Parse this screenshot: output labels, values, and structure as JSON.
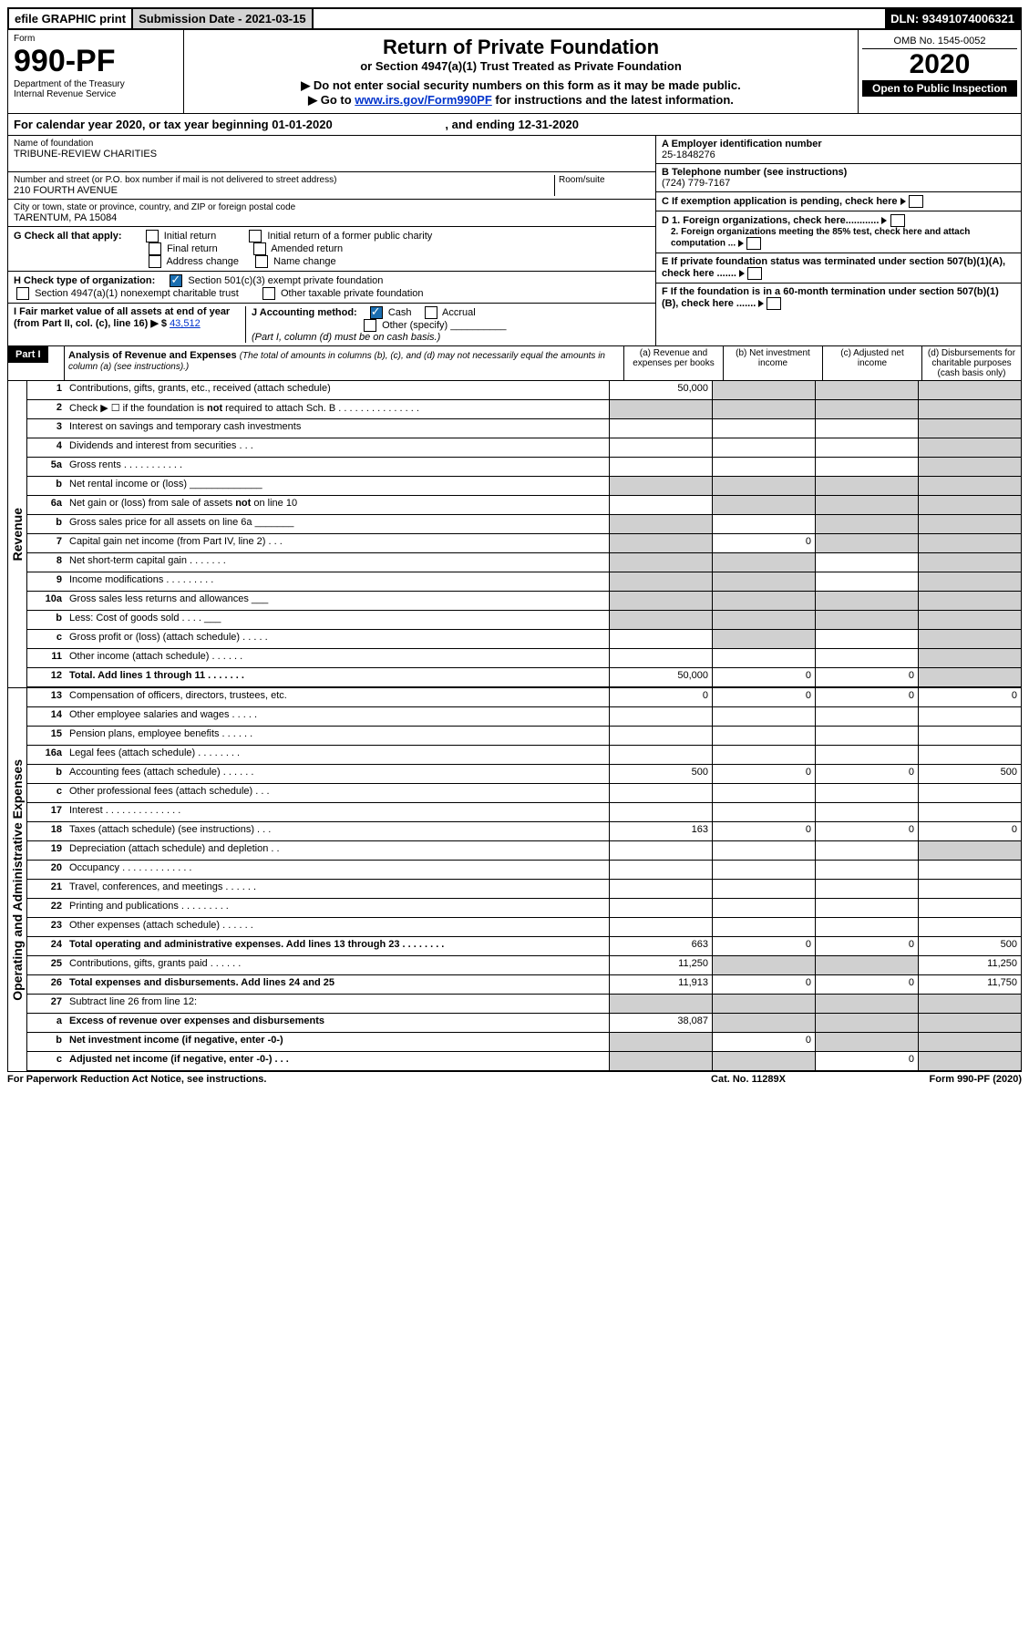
{
  "topbar": {
    "efile": "efile GRAPHIC print",
    "subdate": "Submission Date - 2021-03-15",
    "dln": "DLN: 93491074006321"
  },
  "hdr": {
    "form": "Form",
    "formno": "990-PF",
    "dept": "Department of the Treasury",
    "irs": "Internal Revenue Service",
    "title": "Return of Private Foundation",
    "subtitle": "or Section 4947(a)(1) Trust Treated as Private Foundation",
    "note1": "▶ Do not enter social security numbers on this form as it may be made public.",
    "note2": "▶ Go to ",
    "link": "www.irs.gov/Form990PF",
    "note3": " for instructions and the latest information.",
    "omb": "OMB No. 1545-0052",
    "year": "2020",
    "open": "Open to Public Inspection"
  },
  "calyear": "For calendar year 2020, or tax year beginning 01-01-2020",
  "calyear2": ", and ending 12-31-2020",
  "left": {
    "name_lbl": "Name of foundation",
    "name": "TRIBUNE-REVIEW CHARITIES",
    "addr_lbl": "Number and street (or P.O. box number if mail is not delivered to street address)",
    "room_lbl": "Room/suite",
    "addr": "210 FOURTH AVENUE",
    "city_lbl": "City or town, state or province, country, and ZIP or foreign postal code",
    "city": "TARENTUM, PA  15084",
    "g": "G Check all that apply:",
    "g1": "Initial return",
    "g2": "Final return",
    "g3": "Address change",
    "g4": "Initial return of a former public charity",
    "g5": "Amended return",
    "g6": "Name change",
    "h": "H Check type of organization:",
    "h1": "Section 501(c)(3) exempt private foundation",
    "h2": "Section 4947(a)(1) nonexempt charitable trust",
    "h3": "Other taxable private foundation",
    "i": "I Fair market value of all assets at end of year (from Part II, col. (c), line 16) ▶ $",
    "ival": "43,512",
    "j": "J Accounting method:",
    "j1": "Cash",
    "j2": "Accrual",
    "j3": "Other (specify)",
    "jnote": "(Part I, column (d) must be on cash basis.)"
  },
  "right": {
    "a": "A Employer identification number",
    "aval": "25-1848276",
    "b": "B Telephone number (see instructions)",
    "bval": "(724) 779-7167",
    "c": "C If exemption application is pending, check here",
    "d1": "D 1. Foreign organizations, check here............",
    "d2": "2. Foreign organizations meeting the 85% test, check here and attach computation ...",
    "e": "E If private foundation status was terminated under section 507(b)(1)(A), check here .......",
    "f": "F If the foundation is in a 60-month termination under section 507(b)(1)(B), check here ......."
  },
  "part1": {
    "label": "Part I",
    "title": "Analysis of Revenue and Expenses",
    "note": "(The total of amounts in columns (b), (c), and (d) may not necessarily equal the amounts in column (a) (see instructions).)",
    "cols": {
      "a": "(a)  Revenue and expenses per books",
      "b": "(b)  Net investment income",
      "c": "(c)  Adjusted net income",
      "d": "(d)  Disbursements for charitable purposes (cash basis only)"
    }
  },
  "side": {
    "rev": "Revenue",
    "exp": "Operating and Administrative Expenses"
  },
  "rows": [
    {
      "n": "1",
      "d": "Contributions, gifts, grants, etc., received (attach schedule)",
      "a": "50,000",
      "bg": [
        "",
        "g",
        "g",
        "g"
      ]
    },
    {
      "n": "2",
      "d": "Check ▶ ☐ if the foundation is not required to attach Sch. B  .  .  .  .  .  .  .  .  .  .  .  .  .  .  .",
      "bg": [
        "g",
        "g",
        "g",
        "g"
      ]
    },
    {
      "n": "3",
      "d": "Interest on savings and temporary cash investments",
      "bg": [
        "",
        "",
        "",
        "g"
      ]
    },
    {
      "n": "4",
      "d": "Dividends and interest from securities   .   .   .",
      "bg": [
        "",
        "",
        "",
        "g"
      ]
    },
    {
      "n": "5a",
      "d": "Gross rents   .   .   .   .   .   .   .   .   .   .   .",
      "bg": [
        "",
        "",
        "",
        "g"
      ]
    },
    {
      "n": "b",
      "d": "Net rental income or (loss)  _____________",
      "bg": [
        "g",
        "g",
        "g",
        "g"
      ]
    },
    {
      "n": "6a",
      "d": "Net gain or (loss) from sale of assets not on line 10",
      "bg": [
        "",
        "g",
        "g",
        "g"
      ]
    },
    {
      "n": "b",
      "d": "Gross sales price for all assets on line 6a _______",
      "bg": [
        "g",
        "",
        "g",
        "g"
      ]
    },
    {
      "n": "7",
      "d": "Capital gain net income (from Part IV, line 2)   .   .   .",
      "b": "0",
      "bg": [
        "g",
        "",
        "g",
        "g"
      ]
    },
    {
      "n": "8",
      "d": "Net short-term capital gain  .   .   .   .   .   .   .",
      "bg": [
        "g",
        "g",
        "",
        "g"
      ]
    },
    {
      "n": "9",
      "d": "Income modifications .   .   .   .   .   .   .   .   .",
      "bg": [
        "g",
        "g",
        "",
        "g"
      ]
    },
    {
      "n": "10a",
      "d": "Gross sales less returns and allowances  ___",
      "bg": [
        "g",
        "g",
        "g",
        "g"
      ]
    },
    {
      "n": "b",
      "d": "Less: Cost of goods sold    .   .   .   .   ___",
      "bg": [
        "g",
        "g",
        "g",
        "g"
      ]
    },
    {
      "n": "c",
      "d": "Gross profit or (loss) (attach schedule)   .   .   .   .   .",
      "bg": [
        "",
        "g",
        "",
        "g"
      ]
    },
    {
      "n": "11",
      "d": "Other income (attach schedule)   .   .   .   .   .   .",
      "bg": [
        "",
        "",
        "",
        "g"
      ]
    },
    {
      "n": "12",
      "d": "Total. Add lines 1 through 11   .   .   .   .   .   .   .",
      "bold": true,
      "a": "50,000",
      "b": "0",
      "c": "0",
      "bg": [
        "",
        "",
        "",
        "g"
      ]
    }
  ],
  "rows2": [
    {
      "n": "13",
      "d": "Compensation of officers, directors, trustees, etc.",
      "a": "0",
      "b": "0",
      "c": "0",
      "dd": "0"
    },
    {
      "n": "14",
      "d": "Other employee salaries and wages   .   .   .   .   ."
    },
    {
      "n": "15",
      "d": "Pension plans, employee benefits  .   .   .   .   .   ."
    },
    {
      "n": "16a",
      "d": "Legal fees (attach schedule) .   .   .   .   .   .   .   ."
    },
    {
      "n": "b",
      "d": "Accounting fees (attach schedule) .   .   .   .   .   .",
      "a": "500",
      "b": "0",
      "c": "0",
      "dd": "500"
    },
    {
      "n": "c",
      "d": "Other professional fees (attach schedule)   .   .   ."
    },
    {
      "n": "17",
      "d": "Interest  .   .   .   .   .   .   .   .   .   .   .   .   .   ."
    },
    {
      "n": "18",
      "d": "Taxes (attach schedule) (see instructions)   .   .   .",
      "a": "163",
      "b": "0",
      "c": "0",
      "dd": "0"
    },
    {
      "n": "19",
      "d": "Depreciation (attach schedule) and depletion   .   .",
      "bg": [
        "",
        "",
        "",
        "g"
      ]
    },
    {
      "n": "20",
      "d": "Occupancy .   .   .   .   .   .   .   .   .   .   .   .   ."
    },
    {
      "n": "21",
      "d": "Travel, conferences, and meetings .   .   .   .   .   ."
    },
    {
      "n": "22",
      "d": "Printing and publications .   .   .   .   .   .   .   .   ."
    },
    {
      "n": "23",
      "d": "Other expenses (attach schedule)  .   .   .   .   .   ."
    },
    {
      "n": "24",
      "d": "Total operating and administrative expenses. Add lines 13 through 23   .   .   .   .   .   .   .   .",
      "bold": true,
      "a": "663",
      "b": "0",
      "c": "0",
      "dd": "500"
    },
    {
      "n": "25",
      "d": "Contributions, gifts, grants paid    .   .   .   .   .   .",
      "a": "11,250",
      "dd": "11,250",
      "bg": [
        "",
        "g",
        "g",
        ""
      ]
    },
    {
      "n": "26",
      "d": "Total expenses and disbursements. Add lines 24 and 25",
      "bold": true,
      "a": "11,913",
      "b": "0",
      "c": "0",
      "dd": "11,750"
    },
    {
      "n": "27",
      "d": "Subtract line 26 from line 12:",
      "bg": [
        "g",
        "g",
        "g",
        "g"
      ]
    },
    {
      "n": "a",
      "d": "Excess of revenue over expenses and disbursements",
      "bold": true,
      "a": "38,087",
      "bg": [
        "",
        "g",
        "g",
        "g"
      ]
    },
    {
      "n": "b",
      "d": "Net investment income (if negative, enter -0-)",
      "bold": true,
      "b": "0",
      "bg": [
        "g",
        "",
        "g",
        "g"
      ]
    },
    {
      "n": "c",
      "d": "Adjusted net income (if negative, enter -0-)   .   .   .",
      "bold": true,
      "c": "0",
      "bg": [
        "g",
        "g",
        "",
        "g"
      ]
    }
  ],
  "footer": {
    "left": "For Paperwork Reduction Act Notice, see instructions.",
    "mid": "Cat. No. 11289X",
    "right": "Form 990-PF (2020)"
  }
}
